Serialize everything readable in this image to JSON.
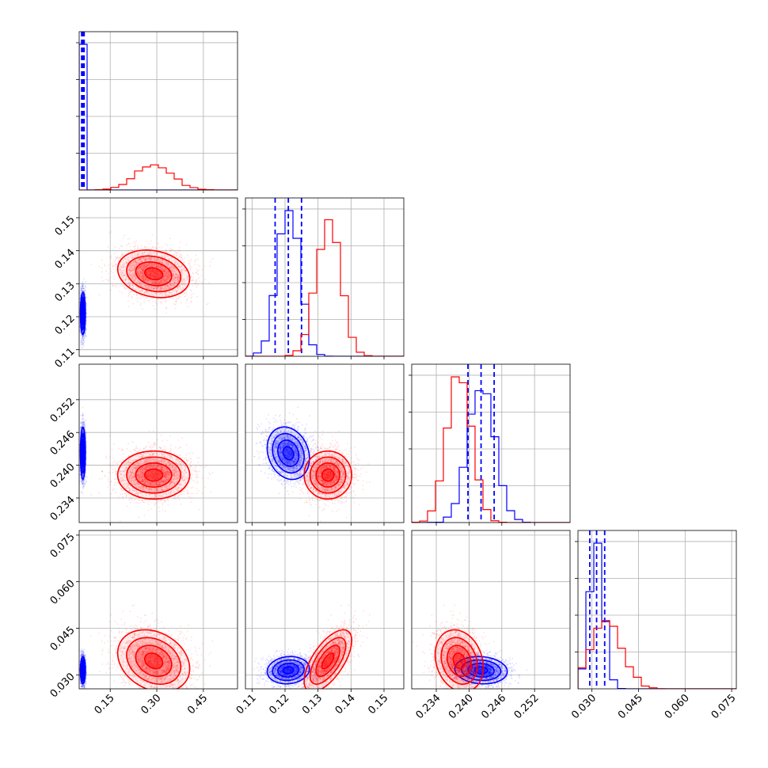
{
  "chart_data": {
    "type": "corner",
    "colors": {
      "blue": "#0000ff",
      "red": "#ff0000",
      "grid": "#b0b0b0"
    },
    "parameters": [
      {
        "range": [
          0.05,
          0.56
        ],
        "ticks": [
          0.15,
          0.3,
          0.45
        ],
        "tick_labels": [
          "0.15",
          "0.30",
          "0.45"
        ]
      },
      {
        "range": [
          0.108,
          0.156
        ],
        "ticks": [
          0.11,
          0.12,
          0.13,
          0.14,
          0.15
        ],
        "tick_labels": [
          "0.11",
          "0.12",
          "0.13",
          "0.14",
          "0.15"
        ]
      },
      {
        "range": [
          0.2295,
          0.2585
        ],
        "ticks": [
          0.234,
          0.24,
          0.246,
          0.252
        ],
        "tick_labels": [
          "0.234",
          "0.240",
          "0.246",
          "0.252"
        ]
      },
      {
        "range": [
          0.0255,
          0.0765
        ],
        "ticks": [
          0.03,
          0.045,
          0.06,
          0.075
        ],
        "tick_labels": [
          "0.030",
          "0.045",
          "0.060",
          "0.075"
        ]
      }
    ],
    "series": [
      {
        "color": "blue",
        "means": [
          0.062,
          0.121,
          0.2422,
          0.0315
        ],
        "sigmas": [
          0.004,
          0.0032,
          0.0024,
          0.0022
        ],
        "correlations": [
          [
            1,
            0,
            0,
            0
          ],
          [
            0,
            1,
            -0.2,
            0.1
          ],
          [
            0,
            -0.2,
            1,
            -0.1
          ],
          [
            0,
            0.1,
            -0.1,
            1
          ]
        ],
        "quantile_lines": [
          [
            0.058,
            0.062,
            0.066
          ],
          [
            0.117,
            0.121,
            0.125
          ],
          [
            0.2398,
            0.2422,
            0.2446
          ],
          [
            0.0293,
            0.0315,
            0.0341
          ]
        ]
      },
      {
        "color": "red",
        "means": [
          0.29,
          0.133,
          0.2382,
          0.0345
        ],
        "sigmas": [
          0.058,
          0.0036,
          0.0022,
          0.005
        ],
        "correlations": [
          [
            1,
            -0.2,
            0,
            -0.25
          ],
          [
            -0.2,
            1,
            0,
            0.65
          ],
          [
            0,
            0,
            1,
            -0.2
          ],
          [
            -0.25,
            0.65,
            -0.2,
            1
          ]
        ],
        "quantile_lines": null
      }
    ]
  }
}
